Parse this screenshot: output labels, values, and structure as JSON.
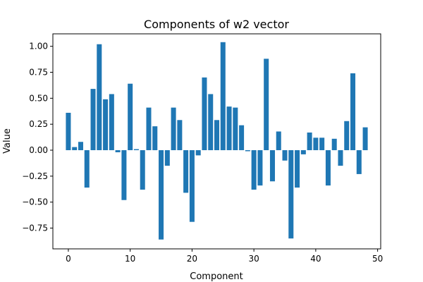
{
  "chart_data": {
    "type": "bar",
    "title": "Components of w2 vector",
    "xlabel": "Component",
    "ylabel": "Value",
    "bar_color": "#1f77b4",
    "xlim": [
      -2.5,
      50.5
    ],
    "ylim": [
      -0.95,
      1.12
    ],
    "xticks": [
      0,
      10,
      20,
      30,
      40,
      50
    ],
    "yticks": [
      -0.75,
      -0.5,
      -0.25,
      0.0,
      0.25,
      0.5,
      0.75,
      1.0
    ],
    "xtick_labels": [
      "0",
      "10",
      "20",
      "30",
      "40",
      "50"
    ],
    "ytick_labels": [
      "−0.75",
      "−0.50",
      "−0.25",
      "0.00",
      "0.25",
      "0.50",
      "0.75",
      "1.00"
    ],
    "grid": false,
    "categories": [
      0,
      1,
      2,
      3,
      4,
      5,
      6,
      7,
      8,
      9,
      10,
      11,
      12,
      13,
      14,
      15,
      16,
      17,
      18,
      19,
      20,
      21,
      22,
      23,
      24,
      25,
      26,
      27,
      28,
      29,
      30,
      31,
      32,
      33,
      34,
      35,
      36,
      37,
      38,
      39,
      40,
      41,
      42,
      43,
      44,
      45,
      46,
      47,
      48
    ],
    "values": [
      0.36,
      0.03,
      0.08,
      -0.36,
      0.59,
      1.02,
      0.49,
      0.54,
      -0.02,
      -0.48,
      0.64,
      0.01,
      -0.38,
      0.41,
      0.23,
      -0.86,
      -0.15,
      0.41,
      0.29,
      -0.41,
      -0.69,
      -0.05,
      0.7,
      0.54,
      0.29,
      1.04,
      0.42,
      0.41,
      0.24,
      -0.01,
      -0.38,
      -0.34,
      0.88,
      -0.3,
      0.18,
      -0.1,
      -0.85,
      -0.36,
      -0.04,
      0.17,
      0.12,
      0.12,
      -0.34,
      0.11,
      -0.15,
      0.28,
      0.74,
      -0.23,
      0.22
    ]
  }
}
